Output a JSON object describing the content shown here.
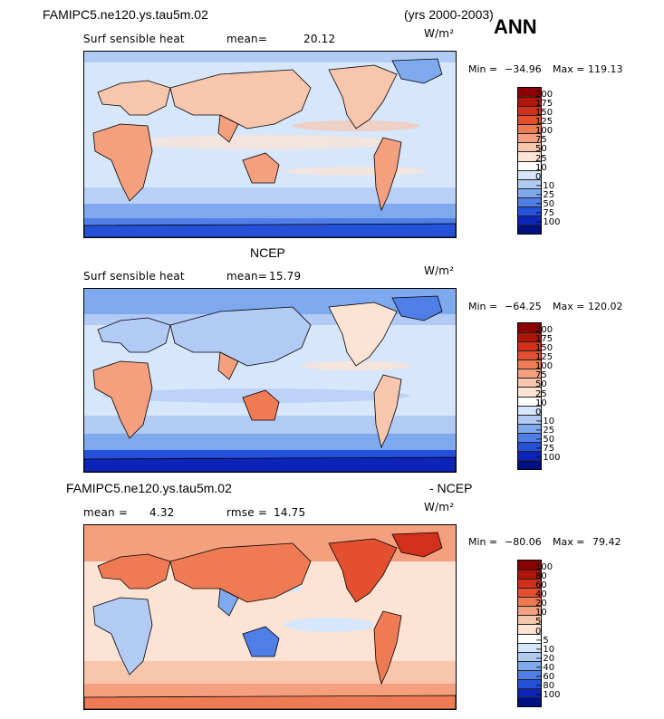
{
  "header": {
    "case_name": "FAMIPC5.ne120.ys.tau5m.02",
    "years": "(yrs 2000-2003)",
    "season": "ANN"
  },
  "panels": [
    {
      "id": "model",
      "title": "",
      "variable": "Surf sensible heat",
      "mean_label": "mean=",
      "mean_value": "20.12",
      "units": "W/m²",
      "min_label": "Min =",
      "min_value": "−34.96",
      "max_label": "Max =",
      "max_value": "119.13",
      "colorbar": {
        "levels": [
          "200",
          "175",
          "150",
          "125",
          "100",
          "75",
          "50",
          "25",
          "10",
          "0",
          "−10",
          "−25",
          "−50",
          "−75",
          "−100"
        ],
        "colors": [
          "#8b0000",
          "#b0150a",
          "#d2301b",
          "#e3502f",
          "#ee7b54",
          "#f4a07f",
          "#f8c6ac",
          "#fde3d3",
          "#ffffff",
          "#d6e6fb",
          "#b1cbf5",
          "#7ea9ee",
          "#4f7fe6",
          "#2550d8",
          "#0c25b8",
          "#001080"
        ]
      }
    },
    {
      "id": "obs",
      "title": "NCEP",
      "variable": "Surf sensible heat",
      "mean_label": "mean=",
      "mean_value": "15.79",
      "units": "W/m²",
      "min_label": "Min =",
      "min_value": "−64.25",
      "max_label": "Max =",
      "max_value": "120.02",
      "colorbar": {
        "levels": [
          "200",
          "175",
          "150",
          "125",
          "100",
          "75",
          "50",
          "25",
          "10",
          "0",
          "−10",
          "−25",
          "−50",
          "−75",
          "−100"
        ],
        "colors": [
          "#8b0000",
          "#b0150a",
          "#d2301b",
          "#e3502f",
          "#ee7b54",
          "#f4a07f",
          "#f8c6ac",
          "#fde3d3",
          "#ffffff",
          "#d6e6fb",
          "#b1cbf5",
          "#7ea9ee",
          "#4f7fe6",
          "#2550d8",
          "#0c25b8",
          "#001080"
        ]
      }
    },
    {
      "id": "diff",
      "title_left": "FAMIPC5.ne120.ys.tau5m.02",
      "title_right": "- NCEP",
      "mean_label": "mean =",
      "mean_value": "4.32",
      "rmse_label": "rmse =",
      "rmse_value": "14.75",
      "units": "W/m²",
      "min_label": "Min =",
      "min_value": "−80.06",
      "max_label": "Max =",
      "max_value": "79.42",
      "colorbar": {
        "levels": [
          "100",
          "80",
          "60",
          "40",
          "20",
          "10",
          "5",
          "0",
          "−5",
          "−10",
          "−20",
          "−40",
          "−60",
          "−80",
          "−100"
        ],
        "colors": [
          "#8b0000",
          "#b0150a",
          "#d2301b",
          "#e3502f",
          "#ee7b54",
          "#f4a07f",
          "#f8c6ac",
          "#fde3d3",
          "#ffffff",
          "#d6e6fb",
          "#b1cbf5",
          "#7ea9ee",
          "#4f7fe6",
          "#2550d8",
          "#0c25b8",
          "#001080"
        ]
      }
    }
  ]
}
